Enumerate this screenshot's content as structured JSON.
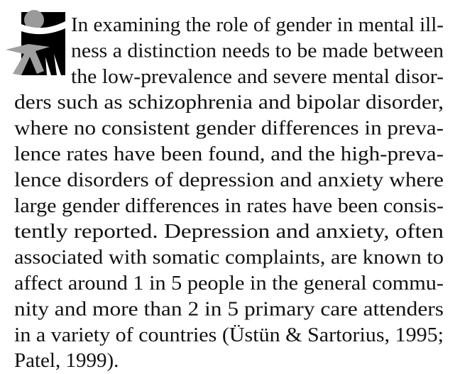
{
  "paragraph": {
    "lines": [
      "In examining the role of gender in mental ill-",
      "ness a distinction needs to be made between",
      "the low-prevalence and severe mental disor-",
      "ders such as schizophrenia and bipolar disorder,",
      "where no consistent gender differences in preva-",
      "lence rates have been found, and the high-preva-",
      "lence disorders of depression and anxiety where",
      "large gender differences in rates have been consis-",
      "tently reported. Depression and anxiety, often",
      "associated with somatic complaints, are known to",
      "affect around 1 in 5 people in the general commu-",
      "nity and more than 2 in 5 primary care attenders",
      "in a variety of countries (Üstün & Sartorius, 1995;",
      "Patel, 1999)."
    ]
  }
}
